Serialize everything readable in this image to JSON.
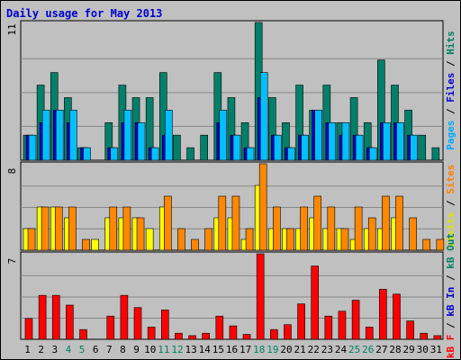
{
  "title": "Daily usage for May 2013",
  "chart_data": [
    {
      "type": "bar",
      "panel": "hits-files-pages",
      "axis_max_label": "11",
      "side_label": [
        {
          "text": "Pages",
          "color": "#00aaff"
        },
        {
          "text": " / ",
          "color": "#000000"
        },
        {
          "text": "Files",
          "color": "#0000d0"
        },
        {
          "text": " / ",
          "color": "#000000"
        },
        {
          "text": "Hits",
          "color": "#008060"
        }
      ],
      "ylim": [
        0,
        11
      ],
      "categories": [
        "1",
        "2",
        "3",
        "4",
        "5",
        "6",
        "7",
        "8",
        "9",
        "10",
        "11",
        "12",
        "13",
        "14",
        "15",
        "16",
        "17",
        "18",
        "19",
        "20",
        "21",
        "22",
        "23",
        "24",
        "25",
        "26",
        "27",
        "28",
        "29",
        "30",
        "31"
      ],
      "series": [
        {
          "name": "Hits",
          "color": "#00806a",
          "values": [
            2,
            6,
            7,
            5,
            1,
            0,
            3,
            6,
            5,
            5,
            7,
            2,
            1,
            2,
            7,
            5,
            3,
            11,
            5,
            3,
            6,
            4,
            6,
            3,
            5,
            3,
            8,
            6,
            4,
            2,
            1
          ]
        },
        {
          "name": "Files",
          "color": "#0000d0",
          "values": [
            2,
            3,
            4,
            3,
            1,
            0,
            1,
            3,
            3,
            1,
            2,
            0,
            0,
            0,
            3,
            2,
            1,
            5,
            2,
            1,
            2,
            4,
            3,
            2,
            2,
            1,
            3,
            3,
            2,
            0,
            0
          ]
        },
        {
          "name": "Pages",
          "color": "#00c0ff",
          "values": [
            2,
            4,
            4,
            4,
            1,
            0,
            1,
            4,
            3,
            1,
            4,
            0,
            0,
            0,
            4,
            2,
            1,
            7,
            2,
            1,
            2,
            4,
            3,
            3,
            2,
            1,
            3,
            3,
            2,
            0,
            0
          ]
        }
      ]
    },
    {
      "type": "bar",
      "panel": "visits-sites",
      "axis_max_label": "8",
      "side_label": [
        {
          "text": "Visits",
          "color": "#e0e000"
        },
        {
          "text": " / ",
          "color": "#000000"
        },
        {
          "text": "Sites",
          "color": "#ff8000"
        }
      ],
      "ylim": [
        0,
        8
      ],
      "series": [
        {
          "name": "Visits",
          "color": "#ffff00",
          "values": [
            2,
            4,
            4,
            3,
            0,
            1,
            3,
            3,
            3,
            2,
            4,
            0,
            0,
            0,
            3,
            3,
            1,
            6,
            2,
            2,
            2,
            3,
            2,
            2,
            1,
            2,
            2,
            3,
            0,
            0,
            0
          ]
        },
        {
          "name": "Sites",
          "color": "#ff8800",
          "values": [
            2,
            4,
            4,
            4,
            1,
            0,
            4,
            4,
            3,
            0,
            5,
            2,
            1,
            2,
            5,
            5,
            2,
            8,
            4,
            2,
            4,
            5,
            4,
            2,
            4,
            3,
            5,
            5,
            3,
            1,
            1
          ]
        }
      ]
    },
    {
      "type": "bar",
      "panel": "kbytes",
      "axis_max_label": "7",
      "side_label": [
        {
          "text": "kB F",
          "color": "#ff0000"
        },
        {
          "text": " / ",
          "color": "#000000"
        },
        {
          "text": "kB In",
          "color": "#0000d0"
        },
        {
          "text": " / ",
          "color": "#000000"
        },
        {
          "text": "kB Out",
          "color": "#008060"
        }
      ],
      "ylim": [
        0,
        7
      ],
      "series": [
        {
          "name": "kB F",
          "color": "#ff0000",
          "values": [
            1.7,
            3.6,
            3.6,
            2.8,
            0.8,
            0,
            1.9,
            3.6,
            2.6,
            1.0,
            2.4,
            0.5,
            0.3,
            0.5,
            1.9,
            1.1,
            0.4,
            7.0,
            0.8,
            1.2,
            2.9,
            6.0,
            1.9,
            2.3,
            3.2,
            1.0,
            4.1,
            3.7,
            1.5,
            0.5,
            0.3
          ]
        }
      ]
    }
  ],
  "weekend_days": [
    4,
    5,
    11,
    12,
    18,
    19,
    25,
    26
  ],
  "colors": {
    "background": "#c0c0c0",
    "weekday_label": "#000000",
    "weekend_label": "#008060"
  }
}
